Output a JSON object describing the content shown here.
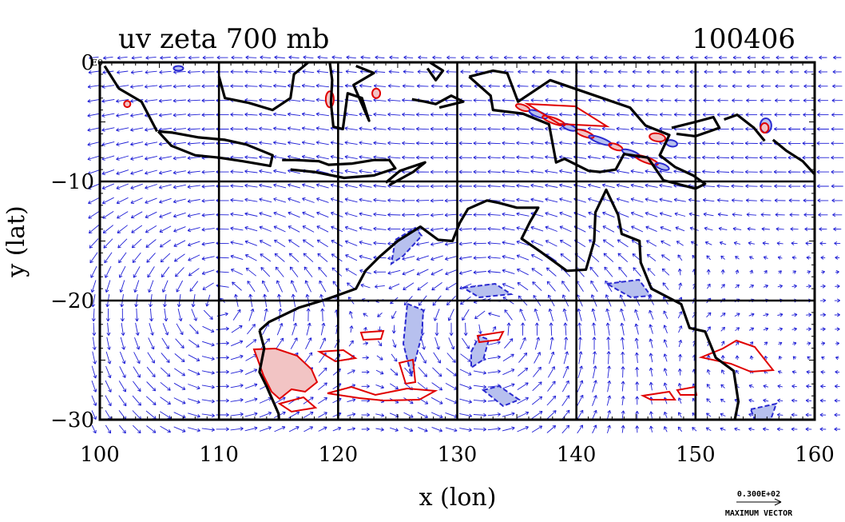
{
  "chart_data": {
    "type": "vector-field",
    "title": "uv zeta 700 mb",
    "date_label": "100406",
    "xlabel": "x (lon)",
    "ylabel": "y (lat)",
    "xlim": [
      100,
      160
    ],
    "ylim": [
      -30,
      0
    ],
    "xticks": [
      100,
      110,
      120,
      130,
      140,
      150,
      160
    ],
    "yticks": [
      0,
      -10,
      -20,
      -30
    ],
    "xtick_labels": [
      "100",
      "110",
      "120",
      "130",
      "140",
      "150",
      "160"
    ],
    "ytick_labels": [
      "0",
      "−10",
      "−20",
      "−30"
    ],
    "top_left_corner_label": "E0",
    "grid": true,
    "reference_vector": {
      "value_label": "0.300E+02",
      "caption": "MAXIMUM VECTOR"
    },
    "colors": {
      "vectors": "#1f1fd6",
      "positive_vorticity": "#e00000",
      "negative_vorticity": "#2a2ad0",
      "positive_fill": "#f2c4c4",
      "negative_fill": "#b7c0ee",
      "coast": "#000000"
    },
    "contour_levels": {
      "positive": "red",
      "negative": "blue"
    }
  }
}
